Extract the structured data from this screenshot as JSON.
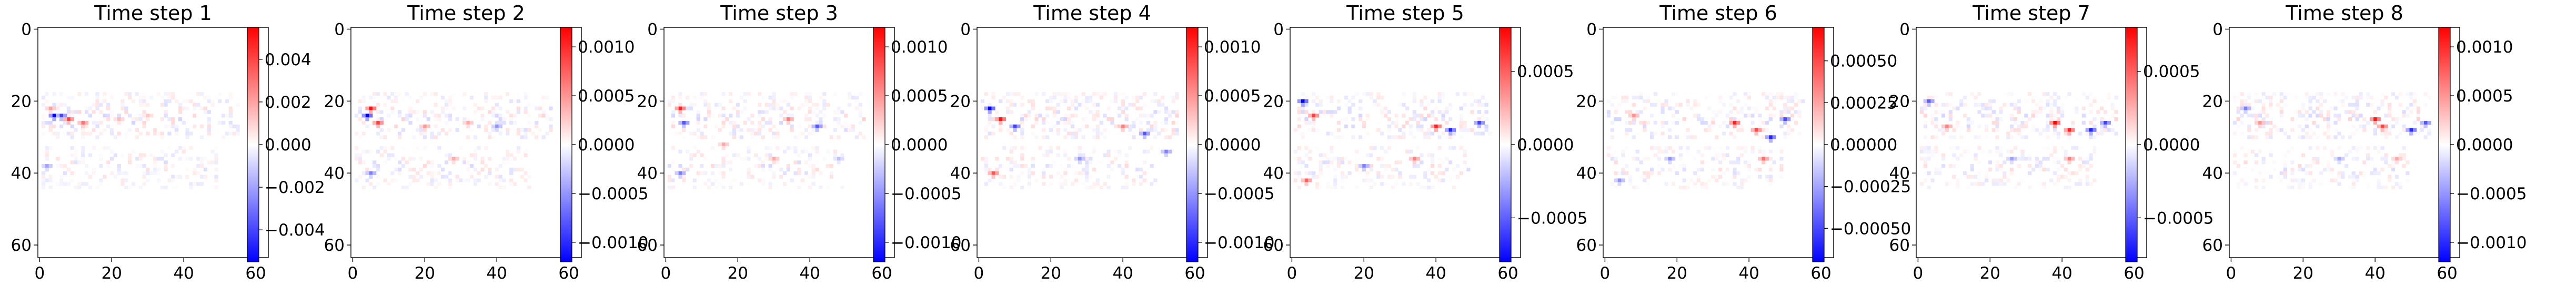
{
  "figure": {
    "background": "#ffffff"
  },
  "chart_data": [
    {
      "type": "heatmap",
      "title": "Time step 1",
      "colormap": "bwr",
      "x_ticks": [
        0,
        20,
        40,
        60
      ],
      "y_ticks": [
        0,
        20,
        40,
        60
      ],
      "xlim": [
        0,
        63
      ],
      "ylim": [
        63,
        0
      ],
      "colorbar": {
        "ticks": [
          -0.004,
          -0.002,
          0.0,
          0.002,
          0.004
        ],
        "tick_labels": [
          "−0.004",
          "−0.002",
          "0.000",
          "0.002",
          "0.004"
        ],
        "vmin": -0.0055,
        "vmax": 0.0055
      },
      "hotspots": [
        {
          "x": 4,
          "y": 24,
          "v": -0.0055
        },
        {
          "x": 6,
          "y": 24,
          "v": -0.004
        },
        {
          "x": 8,
          "y": 25,
          "v": 0.004
        },
        {
          "x": 12,
          "y": 26,
          "v": 0.003
        },
        {
          "x": 3,
          "y": 22,
          "v": 0.002
        },
        {
          "x": 2,
          "y": 38,
          "v": -0.002
        },
        {
          "x": 22,
          "y": 25,
          "v": 0.0015
        },
        {
          "x": 30,
          "y": 24,
          "v": 0.0012
        }
      ]
    },
    {
      "type": "heatmap",
      "title": "Time step 2",
      "colormap": "bwr",
      "x_ticks": [
        0,
        20,
        40,
        60
      ],
      "y_ticks": [
        0,
        20,
        40,
        60
      ],
      "xlim": [
        0,
        63
      ],
      "ylim": [
        63,
        0
      ],
      "colorbar": {
        "ticks": [
          -0.001,
          -0.0005,
          0.0,
          0.0005,
          0.001
        ],
        "tick_labels": [
          "−0.0010",
          "−0.0005",
          "0.0000",
          "0.0005",
          "0.0010"
        ],
        "vmin": -0.0012,
        "vmax": 0.0012
      },
      "hotspots": [
        {
          "x": 4,
          "y": 24,
          "v": -0.0012
        },
        {
          "x": 5,
          "y": 22,
          "v": 0.0011
        },
        {
          "x": 7,
          "y": 26,
          "v": 0.0009
        },
        {
          "x": 20,
          "y": 27,
          "v": 0.0005
        },
        {
          "x": 32,
          "y": 26,
          "v": 0.0004
        },
        {
          "x": 40,
          "y": 27,
          "v": -0.0005
        },
        {
          "x": 5,
          "y": 40,
          "v": -0.0006
        },
        {
          "x": 28,
          "y": 36,
          "v": 0.0004
        }
      ]
    },
    {
      "type": "heatmap",
      "title": "Time step 3",
      "colormap": "bwr",
      "x_ticks": [
        0,
        20,
        40,
        60
      ],
      "y_ticks": [
        0,
        20,
        40,
        60
      ],
      "xlim": [
        0,
        63
      ],
      "ylim": [
        63,
        0
      ],
      "colorbar": {
        "ticks": [
          -0.001,
          -0.0005,
          0.0,
          0.0005,
          0.001
        ],
        "tick_labels": [
          "−0.0010",
          "−0.0005",
          "0.0000",
          "0.0005",
          "0.0010"
        ],
        "vmin": -0.0012,
        "vmax": 0.0012
      },
      "hotspots": [
        {
          "x": 4,
          "y": 22,
          "v": 0.001
        },
        {
          "x": 5,
          "y": 26,
          "v": -0.0008
        },
        {
          "x": 34,
          "y": 25,
          "v": 0.0006
        },
        {
          "x": 42,
          "y": 27,
          "v": -0.0008
        },
        {
          "x": 4,
          "y": 40,
          "v": -0.0006
        },
        {
          "x": 30,
          "y": 36,
          "v": 0.0004
        },
        {
          "x": 16,
          "y": 32,
          "v": 0.0004
        },
        {
          "x": 48,
          "y": 36,
          "v": -0.0003
        }
      ]
    },
    {
      "type": "heatmap",
      "title": "Time step 4",
      "colormap": "bwr",
      "x_ticks": [
        0,
        20,
        40,
        60
      ],
      "y_ticks": [
        0,
        20,
        40,
        60
      ],
      "xlim": [
        0,
        63
      ],
      "ylim": [
        63,
        0
      ],
      "colorbar": {
        "ticks": [
          -0.001,
          -0.0005,
          0.0,
          0.0005,
          0.001
        ],
        "tick_labels": [
          "−0.0010",
          "−0.0005",
          "0.0000",
          "0.0005",
          "0.0010"
        ],
        "vmin": -0.0012,
        "vmax": 0.0012
      },
      "hotspots": [
        {
          "x": 3,
          "y": 22,
          "v": -0.0012
        },
        {
          "x": 6,
          "y": 25,
          "v": 0.0011
        },
        {
          "x": 10,
          "y": 27,
          "v": -0.0009
        },
        {
          "x": 40,
          "y": 27,
          "v": 0.0006
        },
        {
          "x": 46,
          "y": 29,
          "v": -0.0008
        },
        {
          "x": 4,
          "y": 40,
          "v": 0.0008
        },
        {
          "x": 28,
          "y": 36,
          "v": -0.0005
        },
        {
          "x": 52,
          "y": 34,
          "v": -0.0006
        }
      ]
    },
    {
      "type": "heatmap",
      "title": "Time step 5",
      "colormap": "bwr",
      "x_ticks": [
        0,
        20,
        40,
        60
      ],
      "y_ticks": [
        0,
        20,
        40,
        60
      ],
      "xlim": [
        0,
        63
      ],
      "ylim": [
        63,
        0
      ],
      "colorbar": {
        "ticks": [
          -0.0005,
          0.0,
          0.0005
        ],
        "tick_labels": [
          "−0.0005",
          "0.0000",
          "0.0005"
        ],
        "vmin": -0.0008,
        "vmax": 0.0008
      },
      "hotspots": [
        {
          "x": 3,
          "y": 20,
          "v": -0.0008
        },
        {
          "x": 6,
          "y": 24,
          "v": 0.0006
        },
        {
          "x": 40,
          "y": 27,
          "v": 0.0007
        },
        {
          "x": 44,
          "y": 28,
          "v": -0.0007
        },
        {
          "x": 52,
          "y": 26,
          "v": -0.0006
        },
        {
          "x": 4,
          "y": 42,
          "v": 0.0005
        },
        {
          "x": 20,
          "y": 38,
          "v": -0.0004
        },
        {
          "x": 34,
          "y": 36,
          "v": 0.0004
        }
      ]
    },
    {
      "type": "heatmap",
      "title": "Time step 6",
      "colormap": "bwr",
      "x_ticks": [
        0,
        20,
        40,
        60
      ],
      "y_ticks": [
        0,
        20,
        40,
        60
      ],
      "xlim": [
        0,
        63
      ],
      "ylim": [
        63,
        0
      ],
      "colorbar": {
        "ticks": [
          -0.0005,
          -0.00025,
          0.0,
          0.00025,
          0.0005
        ],
        "tick_labels": [
          "−0.00050",
          "−0.00025",
          "0.00000",
          "0.00025",
          "0.00050"
        ],
        "vmin": -0.0007,
        "vmax": 0.0007
      },
      "hotspots": [
        {
          "x": 36,
          "y": 26,
          "v": 0.0006
        },
        {
          "x": 42,
          "y": 28,
          "v": 0.0005
        },
        {
          "x": 46,
          "y": 30,
          "v": -0.0006
        },
        {
          "x": 50,
          "y": 25,
          "v": -0.0005
        },
        {
          "x": 8,
          "y": 24,
          "v": 0.0003
        },
        {
          "x": 18,
          "y": 36,
          "v": -0.0003
        },
        {
          "x": 44,
          "y": 36,
          "v": 0.0004
        },
        {
          "x": 4,
          "y": 42,
          "v": -0.0003
        }
      ]
    },
    {
      "type": "heatmap",
      "title": "Time step 7",
      "colormap": "bwr",
      "x_ticks": [
        0,
        20,
        40,
        60
      ],
      "y_ticks": [
        0,
        20,
        40,
        60
      ],
      "xlim": [
        0,
        63
      ],
      "ylim": [
        63,
        0
      ],
      "colorbar": {
        "ticks": [
          -0.0005,
          0.0,
          0.0005
        ],
        "tick_labels": [
          "−0.0005",
          "0.0000",
          "0.0005"
        ],
        "vmin": -0.0008,
        "vmax": 0.0008
      },
      "hotspots": [
        {
          "x": 38,
          "y": 26,
          "v": 0.0008
        },
        {
          "x": 42,
          "y": 28,
          "v": 0.0007
        },
        {
          "x": 48,
          "y": 28,
          "v": -0.0007
        },
        {
          "x": 52,
          "y": 26,
          "v": -0.0006
        },
        {
          "x": 3,
          "y": 20,
          "v": -0.0005
        },
        {
          "x": 8,
          "y": 27,
          "v": 0.0004
        },
        {
          "x": 26,
          "y": 36,
          "v": -0.0003
        },
        {
          "x": 42,
          "y": 36,
          "v": 0.0004
        }
      ]
    },
    {
      "type": "heatmap",
      "title": "Time step 8",
      "colormap": "bwr",
      "x_ticks": [
        0,
        20,
        40,
        60
      ],
      "y_ticks": [
        0,
        20,
        40,
        60
      ],
      "xlim": [
        0,
        63
      ],
      "ylim": [
        63,
        0
      ],
      "colorbar": {
        "ticks": [
          -0.001,
          -0.0005,
          0.0,
          0.0005,
          0.001
        ],
        "tick_labels": [
          "−0.0010",
          "−0.0005",
          "0.0000",
          "0.0005",
          "0.0010"
        ],
        "vmin": -0.0012,
        "vmax": 0.0012
      },
      "hotspots": [
        {
          "x": 40,
          "y": 25,
          "v": 0.0011
        },
        {
          "x": 42,
          "y": 27,
          "v": 0.0009
        },
        {
          "x": 50,
          "y": 28,
          "v": -0.001
        },
        {
          "x": 54,
          "y": 26,
          "v": -0.0008
        },
        {
          "x": 4,
          "y": 22,
          "v": -0.0006
        },
        {
          "x": 8,
          "y": 26,
          "v": 0.0005
        },
        {
          "x": 30,
          "y": 36,
          "v": -0.0004
        },
        {
          "x": 46,
          "y": 36,
          "v": 0.0004
        }
      ]
    }
  ]
}
